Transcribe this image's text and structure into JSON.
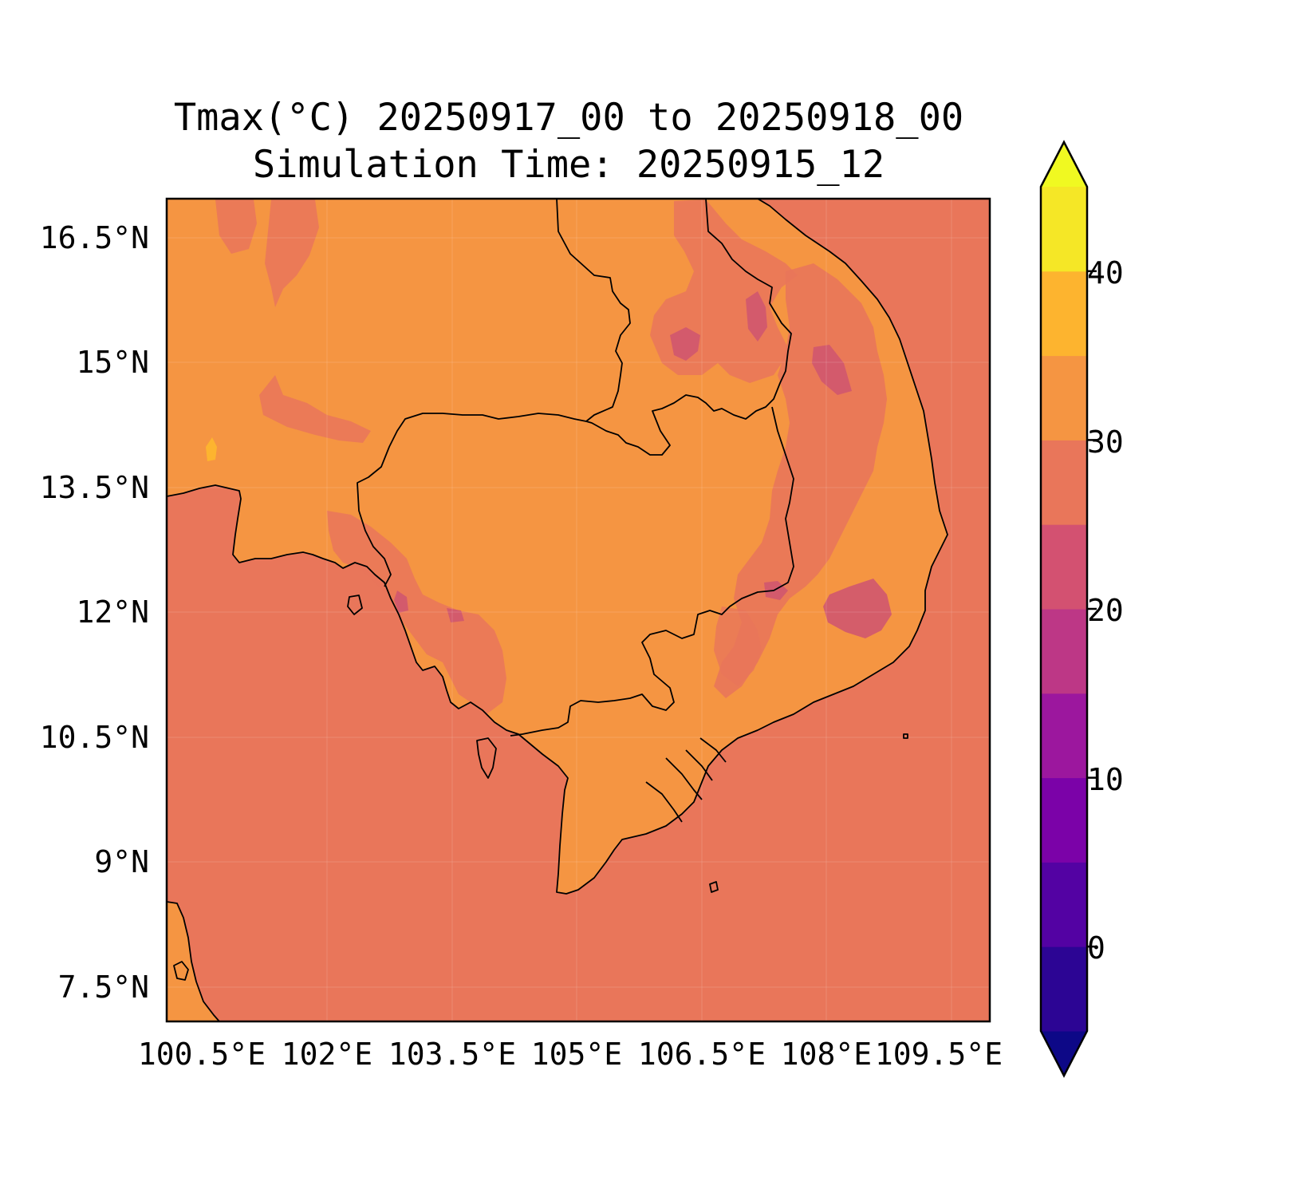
{
  "figure": {
    "title_line1": "Tmax(°C) 20250917_00 to 20250918_00",
    "title_line2": "Simulation Time: 20250915_12"
  },
  "map": {
    "lat_ticks": [
      "16.5°N",
      "15°N",
      "13.5°N",
      "12°N",
      "10.5°N",
      "9°N",
      "7.5°N"
    ],
    "lon_ticks": [
      "100.5°E",
      "102°E",
      "103.5°E",
      "105°E",
      "106.5°E",
      "108°E",
      "109.5°E"
    ],
    "colors": {
      "ocean": "#e9765a",
      "land": "#f59542",
      "cool_patch": "#e07060",
      "cold_patch": "#d0566f",
      "warm_patch": "#fdb42f"
    }
  },
  "colorbar": {
    "tick_labels": [
      "0",
      "10",
      "20",
      "30",
      "40"
    ],
    "levels": [
      -5,
      0,
      5,
      10,
      15,
      20,
      25,
      30,
      35,
      40,
      45
    ],
    "colors": [
      "#0d0887",
      "#2c0594",
      "#5302a3",
      "#7b02a8",
      "#9c179e",
      "#bd3786",
      "#d35171",
      "#e9765a",
      "#f59542",
      "#fdb42f",
      "#f5e726",
      "#f0f921"
    ]
  }
}
